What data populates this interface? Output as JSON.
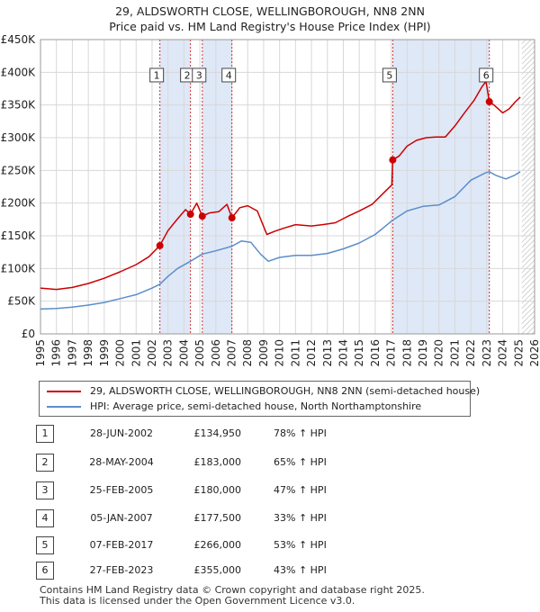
{
  "title_line1": "29, ALDSWORTH CLOSE, WELLINGBOROUGH, NN8 2NN",
  "title_line2": "Price paid vs. HM Land Registry's House Price Index (HPI)",
  "colors": {
    "price": "#cc0000",
    "hpi": "#5b8ecb",
    "shade": "#dfe8f7",
    "vline": "#cc0000",
    "grid": "#d8d8d8"
  },
  "chart_data": {
    "type": "line",
    "xlim": [
      1995,
      2026
    ],
    "ylim": [
      0,
      450000
    ],
    "y_ticks": [
      0,
      50000,
      100000,
      150000,
      200000,
      250000,
      300000,
      350000,
      400000,
      450000
    ],
    "y_tick_labels": [
      "£0",
      "£50K",
      "£100K",
      "£150K",
      "£200K",
      "£250K",
      "£300K",
      "£350K",
      "£400K",
      "£450K"
    ],
    "x_ticks": [
      1995,
      1996,
      1997,
      1998,
      1999,
      2000,
      2001,
      2002,
      2003,
      2004,
      2005,
      2006,
      2007,
      2008,
      2009,
      2010,
      2011,
      2012,
      2013,
      2014,
      2015,
      2016,
      2017,
      2018,
      2019,
      2020,
      2021,
      2022,
      2023,
      2024,
      2025,
      2026
    ],
    "x_tick_labels": [
      "1995",
      "1996",
      "1997",
      "1998",
      "1999",
      "2000",
      "2001",
      "2002",
      "2003",
      "2004",
      "2005",
      "2006",
      "2007",
      "2008",
      "2009",
      "2010",
      "2011",
      "2012",
      "2013",
      "2014",
      "2015",
      "2016",
      "2017",
      "2018",
      "2019",
      "2020",
      "2021",
      "2022",
      "2023",
      "2024",
      "2025",
      "2026"
    ],
    "shaded_periods": [
      [
        2002.49,
        2004.41
      ],
      [
        2005.15,
        2007.01
      ],
      [
        2017.1,
        2023.16
      ]
    ],
    "hatched_from": 2025.2,
    "series": [
      {
        "name": "29, ALDSWORTH CLOSE, WELLINGBOROUGH, NN8 2NN (semi-detached house)",
        "color": "#cc0000",
        "points": [
          [
            1995.0,
            70000
          ],
          [
            1996.0,
            68000
          ],
          [
            1997.0,
            71000
          ],
          [
            1998.0,
            77000
          ],
          [
            1999.0,
            85000
          ],
          [
            2000.0,
            95000
          ],
          [
            2001.0,
            106000
          ],
          [
            2001.8,
            118000
          ],
          [
            2002.49,
            134950
          ],
          [
            2003.0,
            158000
          ],
          [
            2003.6,
            176000
          ],
          [
            2004.1,
            190000
          ],
          [
            2004.41,
            183000
          ],
          [
            2004.8,
            200000
          ],
          [
            2005.15,
            180000
          ],
          [
            2005.6,
            185000
          ],
          [
            2006.2,
            187000
          ],
          [
            2006.7,
            198000
          ],
          [
            2007.01,
            177500
          ],
          [
            2007.5,
            193000
          ],
          [
            2008.0,
            196000
          ],
          [
            2008.6,
            188000
          ],
          [
            2009.2,
            152000
          ],
          [
            2009.7,
            157000
          ],
          [
            2010.3,
            162000
          ],
          [
            2011.0,
            167000
          ],
          [
            2012.0,
            165000
          ],
          [
            2012.7,
            167000
          ],
          [
            2013.5,
            170000
          ],
          [
            2014.3,
            180000
          ],
          [
            2015.0,
            188000
          ],
          [
            2015.8,
            198000
          ],
          [
            2016.5,
            215000
          ],
          [
            2017.05,
            228000
          ],
          [
            2017.1,
            266000
          ],
          [
            2017.5,
            272000
          ],
          [
            2018.0,
            287000
          ],
          [
            2018.6,
            296000
          ],
          [
            2019.2,
            300000
          ],
          [
            2019.8,
            301000
          ],
          [
            2020.4,
            301000
          ],
          [
            2021.0,
            318000
          ],
          [
            2021.6,
            338000
          ],
          [
            2022.2,
            357000
          ],
          [
            2022.7,
            378000
          ],
          [
            2022.95,
            386000
          ],
          [
            2023.16,
            355000
          ],
          [
            2023.5,
            349000
          ],
          [
            2024.0,
            338000
          ],
          [
            2024.4,
            344000
          ],
          [
            2024.8,
            355000
          ],
          [
            2025.1,
            362000
          ]
        ]
      },
      {
        "name": "HPI: Average price, semi-detached house, North Northamptonshire",
        "color": "#5b8ecb",
        "points": [
          [
            1995.0,
            38000
          ],
          [
            1996.0,
            39000
          ],
          [
            1997.0,
            41000
          ],
          [
            1998.0,
            44000
          ],
          [
            1999.0,
            48000
          ],
          [
            2000.0,
            54000
          ],
          [
            2001.0,
            60000
          ],
          [
            2002.0,
            70000
          ],
          [
            2002.49,
            76000
          ],
          [
            2003.0,
            88000
          ],
          [
            2003.6,
            100000
          ],
          [
            2004.41,
            111000
          ],
          [
            2005.15,
            122000
          ],
          [
            2006.0,
            127000
          ],
          [
            2007.01,
            134000
          ],
          [
            2007.6,
            142000
          ],
          [
            2008.2,
            140000
          ],
          [
            2008.8,
            122000
          ],
          [
            2009.3,
            111000
          ],
          [
            2010.0,
            117000
          ],
          [
            2011.0,
            120000
          ],
          [
            2012.0,
            120000
          ],
          [
            2013.0,
            123000
          ],
          [
            2014.0,
            130000
          ],
          [
            2015.0,
            139000
          ],
          [
            2016.0,
            152000
          ],
          [
            2017.1,
            174000
          ],
          [
            2018.0,
            188000
          ],
          [
            2019.0,
            195000
          ],
          [
            2020.0,
            197000
          ],
          [
            2021.0,
            210000
          ],
          [
            2022.0,
            235000
          ],
          [
            2022.9,
            246000
          ],
          [
            2023.16,
            248000
          ],
          [
            2023.6,
            242000
          ],
          [
            2024.2,
            237000
          ],
          [
            2024.7,
            242000
          ],
          [
            2025.1,
            248000
          ]
        ]
      }
    ],
    "sales": [
      {
        "label": "1",
        "year": 2002.49,
        "price": 134950
      },
      {
        "label": "2",
        "year": 2004.41,
        "price": 183000
      },
      {
        "label": "3",
        "year": 2005.15,
        "price": 180000
      },
      {
        "label": "4",
        "year": 2007.01,
        "price": 177500
      },
      {
        "label": "5",
        "year": 2017.1,
        "price": 266000
      },
      {
        "label": "6",
        "year": 2023.16,
        "price": 355000
      }
    ],
    "label_box_value": 395000
  },
  "legend": {
    "price_label": "29, ALDSWORTH CLOSE, WELLINGBOROUGH, NN8 2NN (semi-detached house)",
    "hpi_label": "HPI: Average price, semi-detached house, North Northamptonshire"
  },
  "transactions": [
    {
      "num": "1",
      "date": "28-JUN-2002",
      "price": "£134,950",
      "hpi": "78% ↑ HPI"
    },
    {
      "num": "2",
      "date": "28-MAY-2004",
      "price": "£183,000",
      "hpi": "65% ↑ HPI"
    },
    {
      "num": "3",
      "date": "25-FEB-2005",
      "price": "£180,000",
      "hpi": "47% ↑ HPI"
    },
    {
      "num": "4",
      "date": "05-JAN-2007",
      "price": "£177,500",
      "hpi": "33% ↑ HPI"
    },
    {
      "num": "5",
      "date": "07-FEB-2017",
      "price": "£266,000",
      "hpi": "53% ↑ HPI"
    },
    {
      "num": "6",
      "date": "27-FEB-2023",
      "price": "£355,000",
      "hpi": "43% ↑ HPI"
    }
  ],
  "footer": {
    "line1": "Contains HM Land Registry data © Crown copyright and database right 2025.",
    "line2": "This data is licensed under the Open Government Licence v3.0."
  }
}
